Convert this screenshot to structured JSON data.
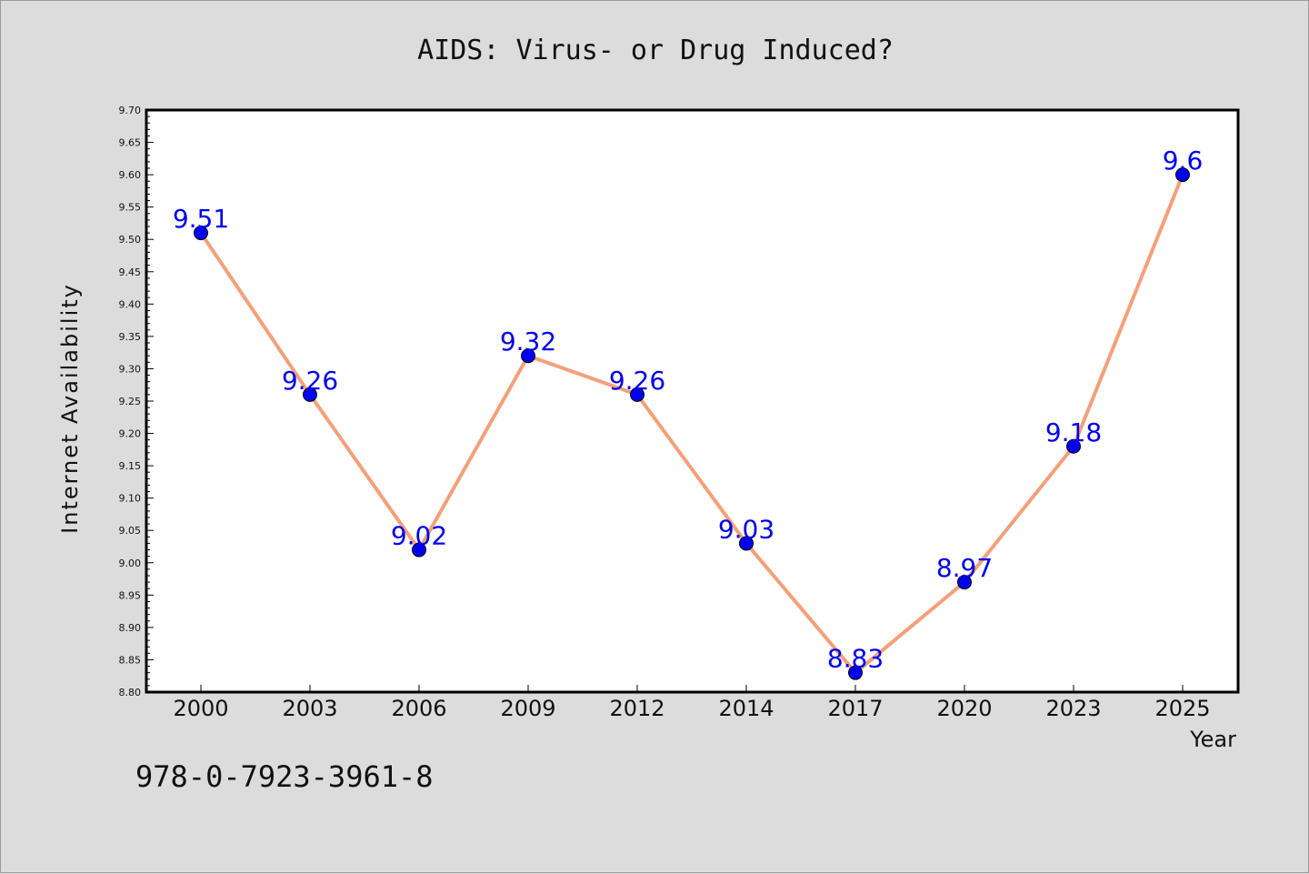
{
  "chart_data": {
    "type": "line",
    "title": "AIDS: Virus- or Drug Induced?",
    "xlabel": "Year",
    "ylabel": "Internet Availability",
    "categories": [
      "2000",
      "2003",
      "2006",
      "2009",
      "2012",
      "2014",
      "2017",
      "2020",
      "2023",
      "2025"
    ],
    "series": [
      {
        "values": [
          9.51,
          9.26,
          9.02,
          9.32,
          9.26,
          9.03,
          8.83,
          8.97,
          9.18,
          9.6
        ],
        "labels": [
          "9.51",
          "9.26",
          "9.02",
          "9.32",
          "9.26",
          "9.03",
          "8.83",
          "8.97",
          "9.18",
          "9.6"
        ],
        "line_color": "#f4a07a",
        "marker_color": "#0000ee"
      }
    ],
    "ylim": [
      8.8,
      9.7
    ],
    "yticks": [
      "8.80",
      "8.85",
      "8.90",
      "8.95",
      "9.00",
      "9.05",
      "9.10",
      "9.15",
      "9.20",
      "9.25",
      "9.30",
      "9.35",
      "9.40",
      "9.45",
      "9.50",
      "9.55",
      "9.60",
      "9.65",
      "9.70"
    ],
    "grid": false,
    "legend": "none"
  },
  "footer": {
    "isbn": "978-0-7923-3961-8"
  },
  "colors": {
    "background": "#dcdcdc",
    "plot_background": "#ffffff",
    "label_color": "#0000ee"
  }
}
